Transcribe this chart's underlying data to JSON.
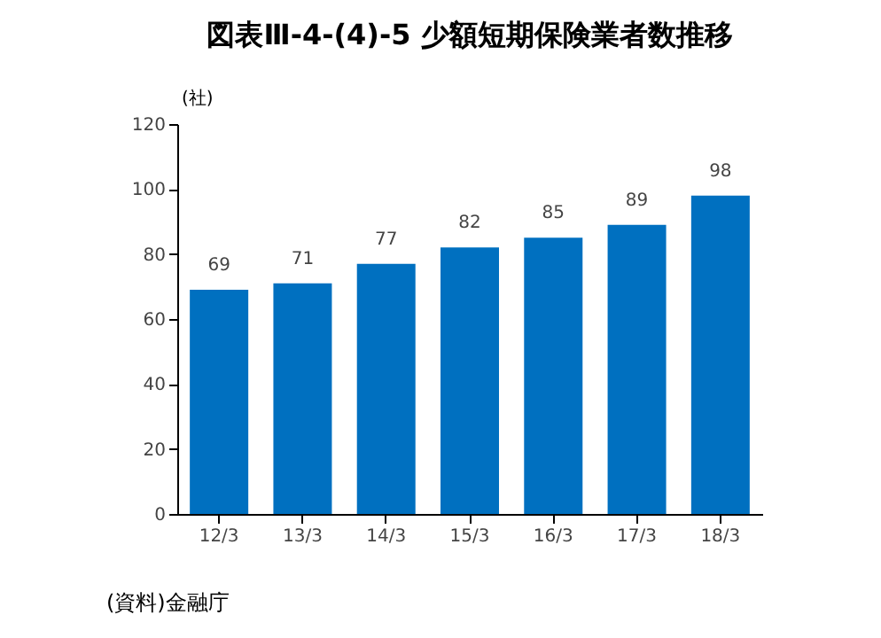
{
  "chart_data": {
    "type": "bar",
    "title": "図表Ⅲ-4-(4)-5 少額短期保険業者数推移",
    "ylabel": "(社)",
    "categories": [
      "12/3",
      "13/3",
      "14/3",
      "15/3",
      "16/3",
      "17/3",
      "18/3"
    ],
    "values": [
      69,
      71,
      77,
      82,
      85,
      89,
      98
    ],
    "color": "#0070c0",
    "ylim": [
      0,
      120
    ],
    "yticks": [
      0,
      20,
      40,
      60,
      80,
      100,
      120
    ],
    "grid": false,
    "data_labels": true,
    "annotations": [
      "(資料)金融庁"
    ]
  }
}
